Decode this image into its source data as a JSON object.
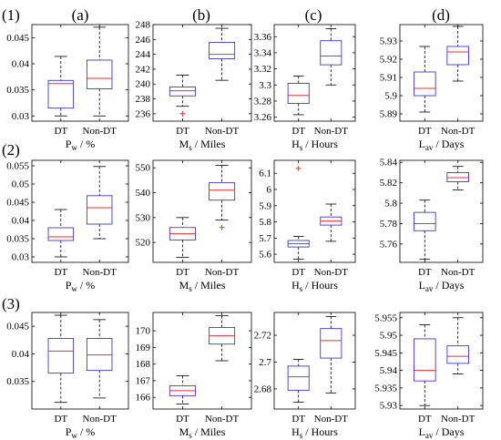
{
  "row_labels": [
    "(1)",
    "(2)",
    "(3)"
  ],
  "col_labels": [
    "(a)",
    "(b)",
    "(c)",
    "(d)"
  ],
  "colors": {
    "box": "#3a3ad8",
    "median": "#e8302f",
    "whisker": "#000000",
    "outlier": "#e8302f",
    "axis": "#000000"
  },
  "chart_data": [
    {
      "type": "boxplot",
      "row": 1,
      "col": "a",
      "categories": [
        "DT",
        "Non-DT"
      ],
      "xlabel": {
        "main": "P",
        "sub": "w",
        "rest": " / %"
      },
      "ylim": [
        0.029,
        0.0475
      ],
      "yticks": [
        0.03,
        0.035,
        0.04,
        0.045
      ],
      "ytick_labels": [
        "0.03",
        "0.035",
        "0.04",
        "0.045"
      ],
      "boxes": [
        {
          "min": 0.03,
          "q1": 0.0315,
          "median": 0.0362,
          "q3": 0.0368,
          "max": 0.0414,
          "outliers": []
        },
        {
          "min": 0.03,
          "q1": 0.0352,
          "median": 0.0372,
          "q3": 0.0407,
          "max": 0.047,
          "outliers": []
        }
      ]
    },
    {
      "type": "boxplot",
      "row": 1,
      "col": "b",
      "categories": [
        "DT",
        "Non-DT"
      ],
      "xlabel": {
        "main": "M",
        "sub": "s",
        "rest": " / Miles"
      },
      "ylim": [
        235,
        248
      ],
      "yticks": [
        236,
        238,
        240,
        242,
        244,
        246,
        248
      ],
      "ytick_labels": [
        "236",
        "238",
        "240",
        "242",
        "244",
        "246",
        "248"
      ],
      "boxes": [
        {
          "min": 237.0,
          "q1": 238.4,
          "median": 239.1,
          "q3": 239.6,
          "max": 241.2,
          "outliers": [
            236.0
          ]
        },
        {
          "min": 240.5,
          "q1": 243.4,
          "median": 244.0,
          "q3": 245.6,
          "max": 247.5,
          "outliers": []
        }
      ]
    },
    {
      "type": "boxplot",
      "row": 1,
      "col": "c",
      "categories": [
        "DT",
        "Non-DT"
      ],
      "xlabel": {
        "main": "H",
        "sub": "s",
        "rest": " / Hours"
      },
      "ylim": [
        3.255,
        3.375
      ],
      "yticks": [
        3.26,
        3.28,
        3.3,
        3.32,
        3.34,
        3.36
      ],
      "ytick_labels": [
        "3.26",
        "3.28",
        "3.3",
        "3.32",
        "3.34",
        "3.36"
      ],
      "boxes": [
        {
          "min": 3.263,
          "q1": 3.277,
          "median": 3.287,
          "q3": 3.302,
          "max": 3.311,
          "outliers": []
        },
        {
          "min": 3.3,
          "q1": 3.325,
          "median": 3.336,
          "q3": 3.355,
          "max": 3.37,
          "outliers": []
        }
      ]
    },
    {
      "type": "boxplot",
      "row": 1,
      "col": "d",
      "categories": [
        "DT",
        "Non-DT"
      ],
      "xlabel": {
        "main": "L",
        "sub": "av",
        "rest": " / Days"
      },
      "ylim": [
        5.886,
        5.939
      ],
      "yticks": [
        5.89,
        5.9,
        5.91,
        5.92,
        5.93
      ],
      "ytick_labels": [
        "5.89",
        "5.9",
        "5.91",
        "5.92",
        "5.93"
      ],
      "boxes": [
        {
          "min": 5.891,
          "q1": 5.9,
          "median": 5.904,
          "q3": 5.913,
          "max": 5.927,
          "outliers": []
        },
        {
          "min": 5.908,
          "q1": 5.917,
          "median": 5.924,
          "q3": 5.927,
          "max": 5.938,
          "outliers": []
        }
      ]
    },
    {
      "type": "boxplot",
      "row": 2,
      "col": "a",
      "categories": [
        "DT",
        "Non-DT"
      ],
      "xlabel": {
        "main": "P",
        "sub": "w",
        "rest": " / %"
      },
      "ylim": [
        0.0285,
        0.0565
      ],
      "yticks": [
        0.03,
        0.035,
        0.04,
        0.045,
        0.05,
        0.055
      ],
      "ytick_labels": [
        "0.03",
        "0.035",
        "0.04",
        "0.045",
        "0.05",
        "0.055"
      ],
      "boxes": [
        {
          "min": 0.03,
          "q1": 0.0345,
          "median": 0.0355,
          "q3": 0.038,
          "max": 0.043,
          "outliers": []
        },
        {
          "min": 0.035,
          "q1": 0.039,
          "median": 0.0435,
          "q3": 0.0468,
          "max": 0.0548,
          "outliers": []
        }
      ]
    },
    {
      "type": "boxplot",
      "row": 2,
      "col": "b",
      "categories": [
        "DT",
        "Non-DT"
      ],
      "xlabel": {
        "main": "M",
        "sub": "s",
        "rest": " / Miles"
      },
      "ylim": [
        512,
        553
      ],
      "yticks": [
        520,
        530,
        540,
        550
      ],
      "ytick_labels": [
        "520",
        "530",
        "540",
        "550"
      ],
      "boxes": [
        {
          "min": 514.0,
          "q1": 521.0,
          "median": 523.5,
          "q3": 526.0,
          "max": 530.0,
          "outliers": []
        },
        {
          "min": 529.0,
          "q1": 537.0,
          "median": 541.0,
          "q3": 544.0,
          "max": 551.0,
          "outliers": [
            526.0
          ]
        }
      ]
    },
    {
      "type": "boxplot",
      "row": 2,
      "col": "c",
      "categories": [
        "DT",
        "Non-DT"
      ],
      "xlabel": {
        "main": "H",
        "sub": "s",
        "rest": " / Hours"
      },
      "ylim": [
        5.55,
        6.18
      ],
      "yticks": [
        5.6,
        5.7,
        5.8,
        5.9,
        6.0,
        6.1
      ],
      "ytick_labels": [
        "5.6",
        "5.7",
        "5.8",
        "5.9",
        "6",
        "6.1"
      ],
      "boxes": [
        {
          "min": 5.57,
          "q1": 5.645,
          "median": 5.665,
          "q3": 5.685,
          "max": 5.71,
          "outliers": [
            6.13
          ]
        },
        {
          "min": 5.68,
          "q1": 5.78,
          "median": 5.805,
          "q3": 5.83,
          "max": 5.91,
          "outliers": []
        }
      ]
    },
    {
      "type": "boxplot",
      "row": 2,
      "col": "d",
      "categories": [
        "DT",
        "Non-DT"
      ],
      "xlabel": {
        "main": "L",
        "sub": "av",
        "rest": " / Days"
      },
      "ylim": [
        5.742,
        5.842
      ],
      "yticks": [
        5.76,
        5.78,
        5.8,
        5.82,
        5.84
      ],
      "ytick_labels": [
        "5.76",
        "5.78",
        "5.8",
        "5.82",
        "5.84"
      ],
      "boxes": [
        {
          "min": 5.745,
          "q1": 5.773,
          "median": 5.78,
          "q3": 5.791,
          "max": 5.803,
          "outliers": []
        },
        {
          "min": 5.813,
          "q1": 5.821,
          "median": 5.825,
          "q3": 5.83,
          "max": 5.836,
          "outliers": []
        }
      ]
    },
    {
      "type": "boxplot",
      "row": 3,
      "col": "a",
      "categories": [
        "DT",
        "Non-DT"
      ],
      "xlabel": {
        "main": "P",
        "sub": "w",
        "rest": " / %"
      },
      "ylim": [
        0.03,
        0.0475
      ],
      "yticks": [
        0.035,
        0.04,
        0.045
      ],
      "ytick_labels": [
        "0.035",
        "0.04",
        "0.045"
      ],
      "boxes": [
        {
          "min": 0.0312,
          "q1": 0.0365,
          "median": 0.0405,
          "q3": 0.0428,
          "max": 0.047,
          "outliers": []
        },
        {
          "min": 0.032,
          "q1": 0.037,
          "median": 0.0398,
          "q3": 0.0428,
          "max": 0.0462,
          "outliers": []
        }
      ]
    },
    {
      "type": "boxplot",
      "row": 3,
      "col": "b",
      "categories": [
        "DT",
        "Non-DT"
      ],
      "xlabel": {
        "main": "M",
        "sub": "s",
        "rest": " / Miles"
      },
      "ylim": [
        165.3,
        171.1
      ],
      "yticks": [
        166,
        167,
        168,
        169,
        170
      ],
      "ytick_labels": [
        "166",
        "167",
        "168",
        "169",
        "170"
      ],
      "boxes": [
        {
          "min": 165.6,
          "q1": 166.1,
          "median": 166.4,
          "q3": 166.7,
          "max": 167.3,
          "outliers": []
        },
        {
          "min": 168.2,
          "q1": 169.2,
          "median": 169.7,
          "q3": 170.2,
          "max": 170.9,
          "outliers": []
        }
      ]
    },
    {
      "type": "boxplot",
      "row": 3,
      "col": "c",
      "categories": [
        "DT",
        "Non-DT"
      ],
      "xlabel": {
        "main": "H",
        "sub": "s",
        "rest": " / Hours"
      },
      "ylim": [
        2.665,
        2.737
      ],
      "yticks": [
        2.68,
        2.7,
        2.72
      ],
      "ytick_labels": [
        "2.68",
        "2.7",
        "2.72"
      ],
      "boxes": [
        {
          "min": 2.67,
          "q1": 2.679,
          "median": 2.689,
          "q3": 2.697,
          "max": 2.702,
          "outliers": []
        },
        {
          "min": 2.677,
          "q1": 2.703,
          "median": 2.716,
          "q3": 2.725,
          "max": 2.734,
          "outliers": []
        }
      ]
    },
    {
      "type": "boxplot",
      "row": 3,
      "col": "d",
      "categories": [
        "DT",
        "Non-DT"
      ],
      "xlabel": {
        "main": "L",
        "sub": "av",
        "rest": " / Days"
      },
      "ylim": [
        5.929,
        5.9565
      ],
      "yticks": [
        5.93,
        5.935,
        5.94,
        5.945,
        5.95,
        5.955
      ],
      "ytick_labels": [
        "5.93",
        "5.935",
        "5.94",
        "5.945",
        "5.95",
        "5.955"
      ],
      "boxes": [
        {
          "min": 5.93,
          "q1": 5.937,
          "median": 5.94,
          "q3": 5.949,
          "max": 5.953,
          "outliers": []
        },
        {
          "min": 5.939,
          "q1": 5.942,
          "median": 5.944,
          "q3": 5.947,
          "max": 5.955,
          "outliers": []
        }
      ]
    }
  ]
}
